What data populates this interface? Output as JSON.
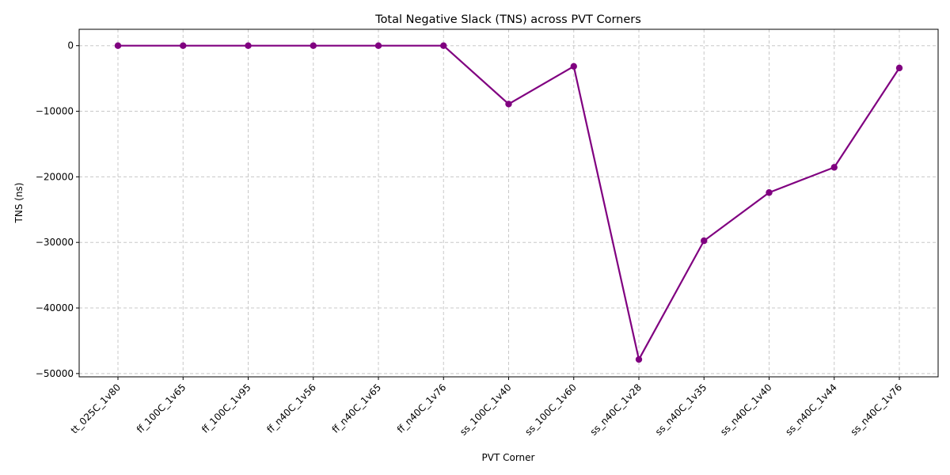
{
  "chart_data": {
    "type": "line",
    "title": "Total Negative Slack (TNS) across PVT Corners",
    "xlabel": "PVT Corner",
    "ylabel": "TNS (ns)",
    "categories": [
      "tt_025C_1v80",
      "ff_100C_1v65",
      "ff_100C_1v95",
      "ff_n40C_1v56",
      "ff_n40C_1v65",
      "ff_n40C_1v76",
      "ss_100C_1v40",
      "ss_100C_1v60",
      "ss_n40C_1v28",
      "ss_n40C_1v35",
      "ss_n40C_1v40",
      "ss_n40C_1v44",
      "ss_n40C_1v76"
    ],
    "series": [
      {
        "values": [
          0,
          0,
          0,
          0,
          0,
          0,
          -8900,
          -3150,
          -47850,
          -29750,
          -22400,
          -18550,
          -3400
        ]
      }
    ],
    "ylim": [
      -50500,
      2500
    ],
    "yticks": [
      0,
      -10000,
      -20000,
      -30000,
      -40000,
      -50000
    ],
    "ytick_labels": [
      "0",
      "−10000",
      "−20000",
      "−30000",
      "−40000",
      "−50000"
    ],
    "grid": true,
    "line_color": "#800080",
    "marker": "circle"
  }
}
